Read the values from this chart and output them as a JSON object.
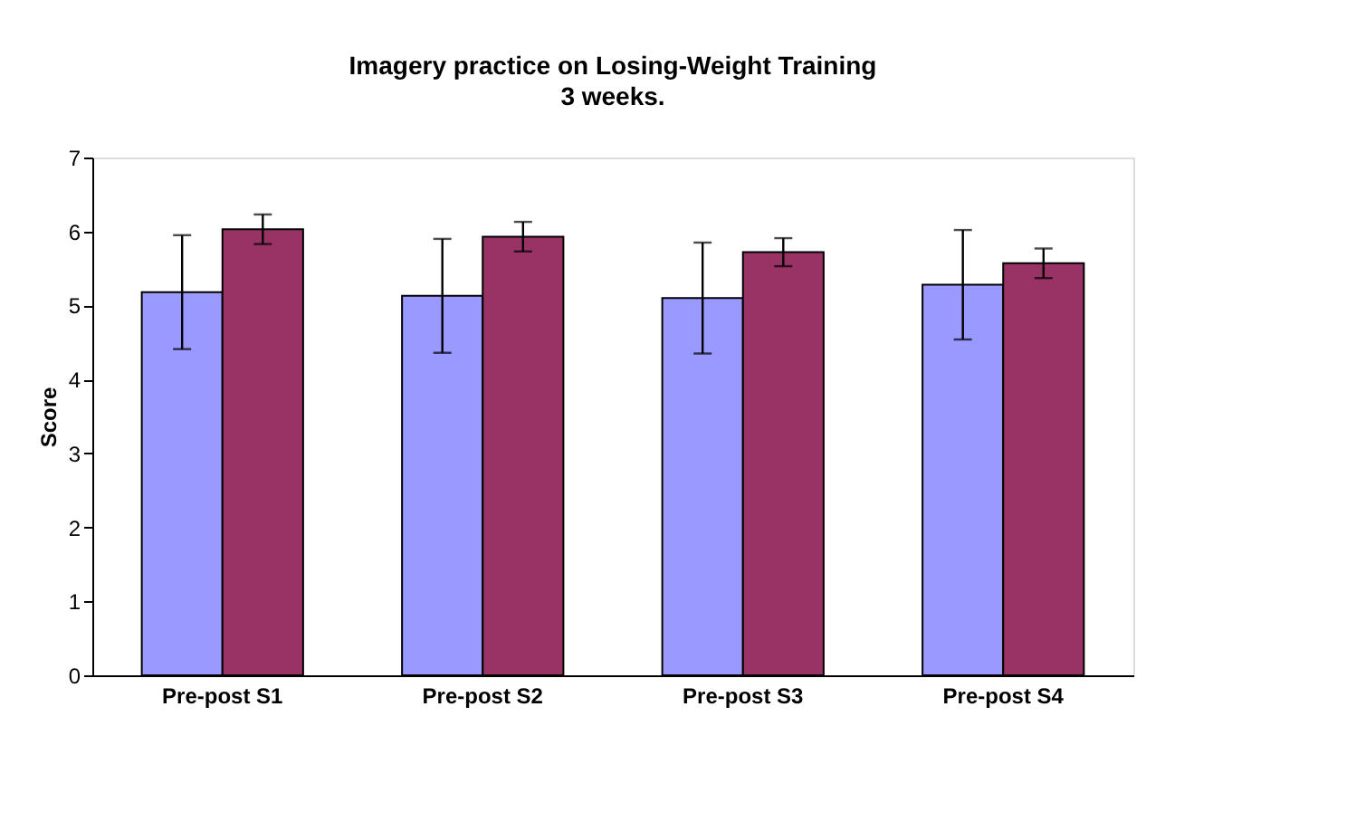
{
  "chart_data": {
    "type": "bar",
    "title": "Imagery practice on Losing-Weight Training",
    "subtitle": "3 weeks.",
    "ylabel": "Score",
    "categories": [
      "Pre-post S1",
      "Pre-post S2",
      "Pre-post S3",
      "Pre-post S4"
    ],
    "series": [
      {
        "color": "#9999ff",
        "values": [
          5.18,
          5.13,
          5.1,
          5.28
        ],
        "errors": [
          0.77,
          0.77,
          0.75,
          0.74
        ]
      },
      {
        "color": "#993366",
        "values": [
          6.03,
          5.93,
          5.72,
          5.57
        ],
        "errors": [
          0.2,
          0.2,
          0.19,
          0.2
        ]
      }
    ],
    "ylim": [
      0,
      7
    ],
    "yticks": [
      0,
      1,
      2,
      3,
      4,
      5,
      6,
      7
    ],
    "grid": false,
    "legend": false
  }
}
